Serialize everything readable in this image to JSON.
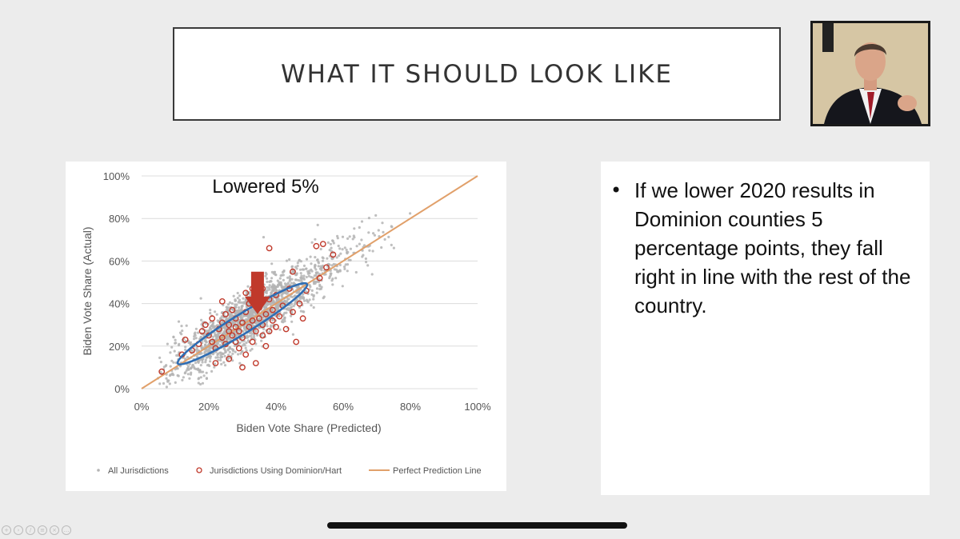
{
  "slide": {
    "title": "WHAT IT SHOULD LOOK LIKE",
    "bullet": "If we lower 2020 results in Dominion counties 5 percentage points, they fall right in line with the rest of the country."
  },
  "colors": {
    "all_points": "#b4b4b4",
    "dominion_points": "#c0392b",
    "prediction_line": "#e1a06a",
    "ellipse": "#2e6db4",
    "arrow": "#c0392b"
  },
  "toolbar_icons": [
    "zoom-icon",
    "pointer-icon",
    "pen-icon",
    "highlighter-icon",
    "eraser-icon",
    "more-icon"
  ],
  "chart_data": {
    "type": "scatter",
    "title": "Lowered 5%",
    "xlabel": "Biden Vote Share (Predicted)",
    "ylabel": "Biden Vote Share (Actual)",
    "xlim": [
      0,
      1
    ],
    "ylim": [
      0,
      1
    ],
    "xticks": [
      "0%",
      "20%",
      "40%",
      "60%",
      "80%",
      "100%"
    ],
    "yticks": [
      "0%",
      "20%",
      "40%",
      "60%",
      "80%",
      "100%"
    ],
    "grid": "horizontal",
    "legend": [
      "All Jurisdictions",
      "Jurisdictions Using Dominion/Hart",
      "Perfect Prediction Line"
    ],
    "legend_position": "bottom",
    "dominion_points": [
      [
        0.06,
        0.08
      ],
      [
        0.12,
        0.16
      ],
      [
        0.13,
        0.23
      ],
      [
        0.15,
        0.18
      ],
      [
        0.17,
        0.21
      ],
      [
        0.18,
        0.27
      ],
      [
        0.19,
        0.3
      ],
      [
        0.2,
        0.25
      ],
      [
        0.21,
        0.22
      ],
      [
        0.21,
        0.33
      ],
      [
        0.22,
        0.19
      ],
      [
        0.23,
        0.28
      ],
      [
        0.24,
        0.24
      ],
      [
        0.24,
        0.31
      ],
      [
        0.25,
        0.35
      ],
      [
        0.25,
        0.21
      ],
      [
        0.26,
        0.27
      ],
      [
        0.26,
        0.3
      ],
      [
        0.27,
        0.25
      ],
      [
        0.27,
        0.37
      ],
      [
        0.28,
        0.22
      ],
      [
        0.28,
        0.29
      ],
      [
        0.28,
        0.33
      ],
      [
        0.29,
        0.19
      ],
      [
        0.29,
        0.27
      ],
      [
        0.3,
        0.31
      ],
      [
        0.3,
        0.24
      ],
      [
        0.31,
        0.36
      ],
      [
        0.31,
        0.16
      ],
      [
        0.32,
        0.29
      ],
      [
        0.32,
        0.4
      ],
      [
        0.33,
        0.22
      ],
      [
        0.33,
        0.32
      ],
      [
        0.34,
        0.27
      ],
      [
        0.34,
        0.12
      ],
      [
        0.35,
        0.33
      ],
      [
        0.35,
        0.38
      ],
      [
        0.36,
        0.25
      ],
      [
        0.36,
        0.3
      ],
      [
        0.37,
        0.2
      ],
      [
        0.37,
        0.35
      ],
      [
        0.38,
        0.42
      ],
      [
        0.38,
        0.27
      ],
      [
        0.39,
        0.32
      ],
      [
        0.39,
        0.37
      ],
      [
        0.4,
        0.29
      ],
      [
        0.4,
        0.44
      ],
      [
        0.41,
        0.34
      ],
      [
        0.42,
        0.39
      ],
      [
        0.43,
        0.28
      ],
      [
        0.44,
        0.47
      ],
      [
        0.45,
        0.36
      ],
      [
        0.46,
        0.22
      ],
      [
        0.47,
        0.4
      ],
      [
        0.48,
        0.33
      ],
      [
        0.49,
        0.46
      ],
      [
        0.52,
        0.67
      ],
      [
        0.53,
        0.52
      ],
      [
        0.54,
        0.68
      ],
      [
        0.55,
        0.57
      ],
      [
        0.57,
        0.63
      ],
      [
        0.38,
        0.66
      ],
      [
        0.33,
        0.47
      ],
      [
        0.24,
        0.41
      ],
      [
        0.3,
        0.1
      ],
      [
        0.22,
        0.12
      ],
      [
        0.45,
        0.55
      ],
      [
        0.26,
        0.14
      ],
      [
        0.31,
        0.45
      ],
      [
        0.36,
        0.47
      ]
    ],
    "all_points": "approximately 2000 gray points clustered along the perfect prediction line, densest between 15% and 45% predicted"
  }
}
